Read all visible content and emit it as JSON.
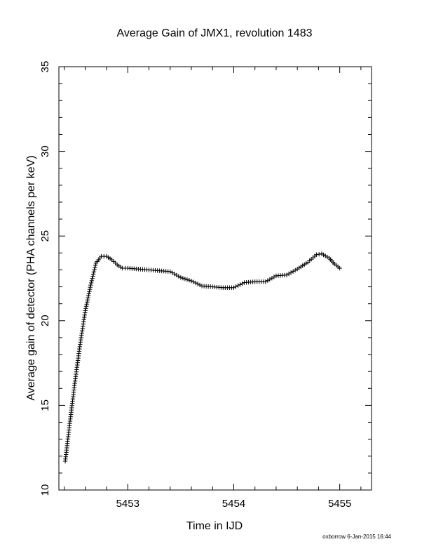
{
  "chart_data": {
    "type": "scatter",
    "title": "Average Gain of JMX1, revolution 1483",
    "xlabel": "Time in IJD",
    "ylabel": "Average gain of detector (PHA channels per keV)",
    "xlim": [
      5452.35,
      5455.3
    ],
    "ylim": [
      10,
      35
    ],
    "xticks": [
      5453,
      5454,
      5455
    ],
    "yticks": [
      10,
      15,
      20,
      25,
      30,
      35
    ],
    "xtick_labels": [
      "5453",
      "5454",
      "5455"
    ],
    "ytick_labels": [
      "10",
      "15",
      "20",
      "25",
      "30",
      "35"
    ],
    "marker": "+",
    "grid": false,
    "series_color": "#000000",
    "key_points": {
      "x": [
        5452.41,
        5452.45,
        5452.5,
        5452.55,
        5452.6,
        5452.65,
        5452.7,
        5452.75,
        5452.8,
        5452.85,
        5452.9,
        5452.95,
        5453.0,
        5453.1,
        5453.2,
        5453.3,
        5453.4,
        5453.5,
        5453.6,
        5453.7,
        5453.8,
        5453.9,
        5454.0,
        5454.1,
        5454.2,
        5454.3,
        5454.4,
        5454.5,
        5454.6,
        5454.7,
        5454.78,
        5454.83,
        5454.9,
        5454.95,
        5455.0
      ],
      "y": [
        11.7,
        13.8,
        16.3,
        18.6,
        20.6,
        22.1,
        23.4,
        23.8,
        23.8,
        23.6,
        23.3,
        23.1,
        23.1,
        23.05,
        23.0,
        22.95,
        22.9,
        22.55,
        22.35,
        22.05,
        22.0,
        21.95,
        21.95,
        22.25,
        22.3,
        22.3,
        22.65,
        22.7,
        23.05,
        23.45,
        23.9,
        23.95,
        23.7,
        23.35,
        23.1
      ]
    }
  },
  "footer": {
    "text": "oxborrow  6-Jan-2015 16:44"
  }
}
